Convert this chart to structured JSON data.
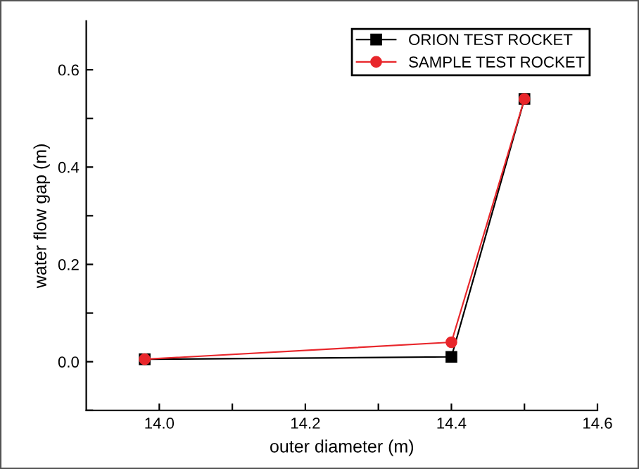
{
  "chart_data": {
    "type": "line",
    "xlabel": "outer diameter (m)",
    "ylabel": "water flow gap (m)",
    "x": [
      13.98,
      14.4,
      14.5
    ],
    "series": [
      {
        "name": "ORION TEST ROCKET",
        "color": "#000000",
        "marker": "square",
        "values": [
          0.005,
          0.01,
          0.54
        ]
      },
      {
        "name": "SAMPLE TEST ROCKET",
        "color": "#e8262b",
        "marker": "circle",
        "values": [
          0.005,
          0.04,
          0.54
        ]
      }
    ],
    "xlim": [
      13.9,
      14.6
    ],
    "ylim": [
      -0.1,
      0.7
    ],
    "xticks": [
      {
        "value": 14.0,
        "label": "14.0"
      },
      {
        "value": 14.1,
        "label": null
      },
      14.2,
      {
        "value": 14.3,
        "label": null
      },
      14.4,
      {
        "value": 14.5,
        "label": null
      },
      14.6
    ],
    "yticks": [
      {
        "value": -0.1,
        "label": null
      },
      {
        "value": 0.0,
        "label": "0.0"
      },
      {
        "value": 0.1,
        "label": null
      },
      0.2,
      {
        "value": 0.3,
        "label": null
      },
      0.4,
      {
        "value": 0.5,
        "label": null
      },
      0.6
    ],
    "grid": false,
    "legend": "top right",
    "line_style": "solid"
  }
}
